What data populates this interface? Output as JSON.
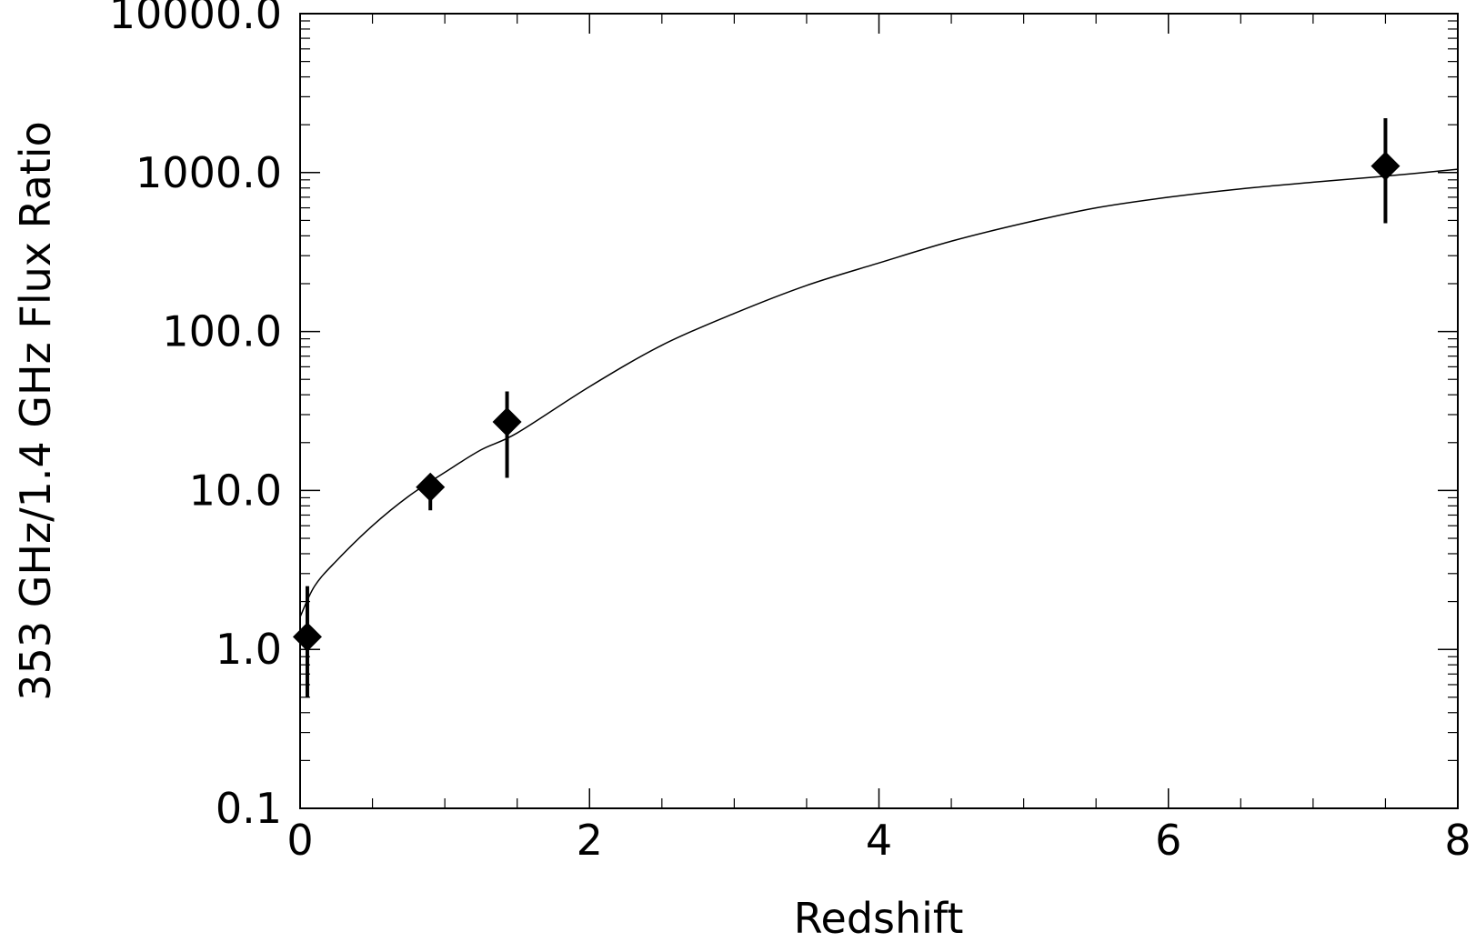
{
  "chart_data": {
    "type": "scatter",
    "title": "",
    "xlabel": "Redshift",
    "ylabel": "353 GHz/1.4 GHz Flux Ratio",
    "xlim": [
      0,
      8
    ],
    "ylim": [
      0.1,
      10000
    ],
    "yscale": "log",
    "grid": false,
    "x_ticks": [
      "0",
      "2",
      "4",
      "6",
      "8"
    ],
    "x_tick_values": [
      0,
      2,
      4,
      6,
      8
    ],
    "y_ticks": [
      "0.1",
      "1.0",
      "10.0",
      "100.0",
      "1000.0",
      "10000.0"
    ],
    "y_tick_values": [
      0.1,
      1,
      10,
      100,
      1000,
      10000
    ],
    "points": [
      {
        "x": 0.05,
        "y": 1.2,
        "y_low": 0.5,
        "y_high": 2.5
      },
      {
        "x": 0.9,
        "y": 10.5,
        "y_low": 7.5,
        "y_high": 12
      },
      {
        "x": 1.43,
        "y": 27,
        "y_low": 12,
        "y_high": 42
      },
      {
        "x": 7.5,
        "y": 1100,
        "y_low": 480,
        "y_high": 2200
      }
    ],
    "model_curve": {
      "x": [
        0,
        0.1,
        0.25,
        0.5,
        0.75,
        1,
        1.25,
        1.5,
        2,
        2.5,
        3,
        3.5,
        4,
        4.5,
        5,
        5.5,
        6,
        6.5,
        7,
        7.5,
        8
      ],
      "y": [
        1.6,
        2.5,
        3.6,
        6,
        9.2,
        13,
        18,
        23,
        45,
        82,
        130,
        195,
        270,
        370,
        480,
        600,
        700,
        790,
        870,
        950,
        1050
      ]
    }
  }
}
